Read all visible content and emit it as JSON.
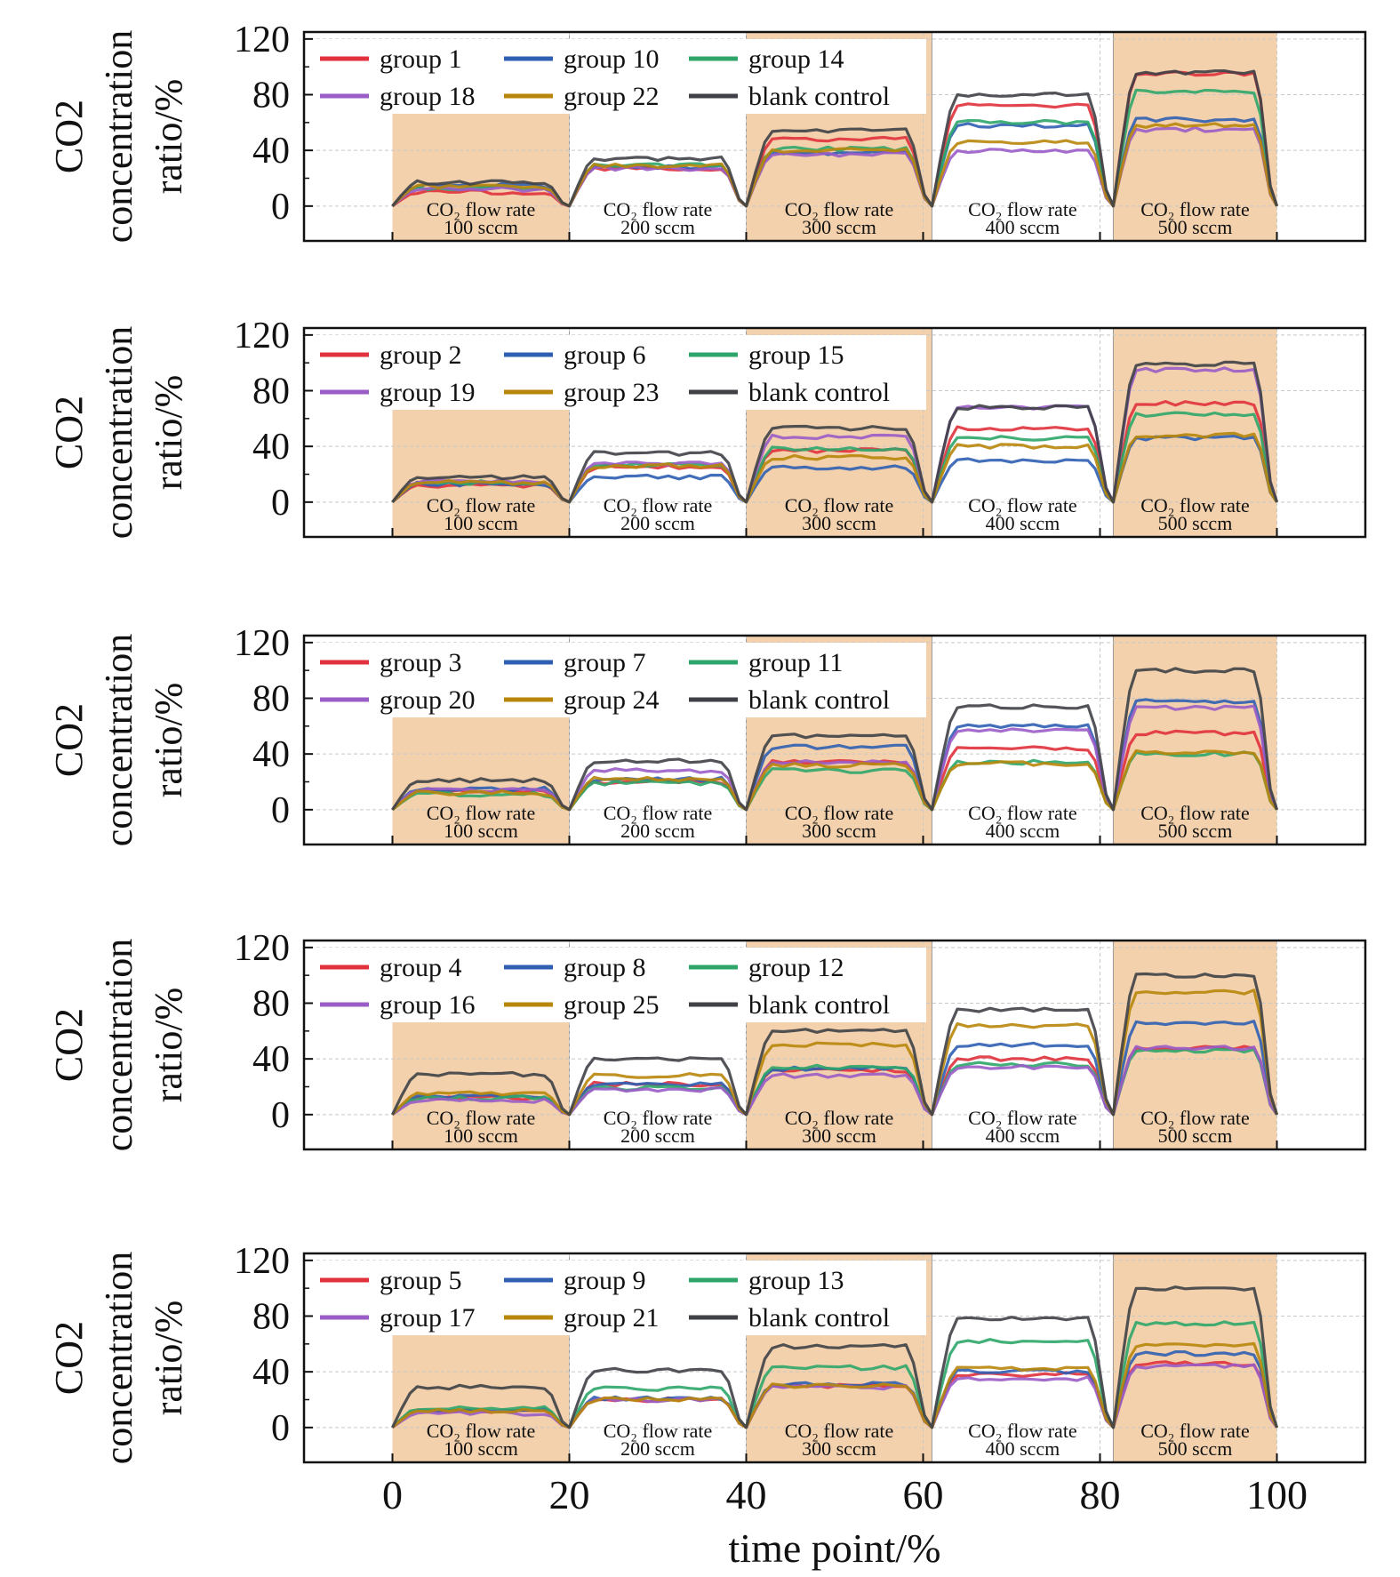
{
  "colors": {
    "red": "#e0313c",
    "blue": "#2f5fb3",
    "green": "#2ea66a",
    "purple": "#9a5cc6",
    "gold": "#b8860b",
    "dark": "#3f4147",
    "band": "#f3d1ad",
    "grid": "#c8c8c8"
  },
  "chart_data": [
    {
      "type": "line",
      "ylabel": [
        "CO2",
        "concentration",
        "ratio/%"
      ],
      "xlim": [
        -10,
        110
      ],
      "ylim": [
        -25,
        125
      ],
      "yticks": [
        0,
        40,
        80,
        120
      ],
      "grid": true,
      "legend_position": "top-left",
      "bands": [
        {
          "x0": 0,
          "x1": 20,
          "line1": "CO₂ flow rate",
          "line2": "100 sccm"
        },
        {
          "x0": 20,
          "x1": 40,
          "line1": "CO₂ flow rate",
          "line2": "200 sccm"
        },
        {
          "x0": 40,
          "x1": 61,
          "line1": "CO₂ flow rate",
          "line2": "300 sccm"
        },
        {
          "x0": 61,
          "x1": 81.5,
          "line1": "CO₂ flow rate",
          "line2": "400 sccm"
        },
        {
          "x0": 81.5,
          "x1": 100,
          "line1": "CO₂ flow rate",
          "line2": "500 sccm"
        }
      ],
      "series": [
        {
          "name": "group 1",
          "color": "red",
          "levels": [
            10,
            27,
            48,
            72,
            95
          ]
        },
        {
          "name": "group 10",
          "color": "blue",
          "levels": [
            15,
            28,
            38,
            58,
            62
          ]
        },
        {
          "name": "group 14",
          "color": "green",
          "levels": [
            13,
            29,
            41,
            60,
            82
          ]
        },
        {
          "name": "group 18",
          "color": "purple",
          "levels": [
            12,
            27,
            37,
            40,
            55
          ]
        },
        {
          "name": "group 22",
          "color": "gold",
          "levels": [
            14,
            29,
            40,
            46,
            58
          ]
        },
        {
          "name": "blank control",
          "color": "dark",
          "levels": [
            17,
            34,
            54,
            80,
            96
          ]
        }
      ]
    },
    {
      "type": "line",
      "ylabel": [
        "CO2",
        "concentration",
        "ratio/%"
      ],
      "xlim": [
        -10,
        110
      ],
      "ylim": [
        -25,
        125
      ],
      "yticks": [
        0,
        40,
        80,
        120
      ],
      "grid": true,
      "legend_position": "top-left",
      "bands": [
        {
          "x0": 0,
          "x1": 20,
          "line1": "CO₂ flow rate",
          "line2": "100 sccm"
        },
        {
          "x0": 20,
          "x1": 40,
          "line1": "CO₂ flow rate",
          "line2": "200 sccm"
        },
        {
          "x0": 40,
          "x1": 61,
          "line1": "CO₂ flow rate",
          "line2": "300 sccm"
        },
        {
          "x0": 61,
          "x1": 81.5,
          "line1": "CO₂ flow rate",
          "line2": "400 sccm"
        },
        {
          "x0": 81.5,
          "x1": 100,
          "line1": "CO₂ flow rate",
          "line2": "500 sccm"
        }
      ],
      "series": [
        {
          "name": "group 2",
          "color": "red",
          "levels": [
            12,
            25,
            37,
            53,
            71
          ]
        },
        {
          "name": "group 6",
          "color": "blue",
          "levels": [
            13,
            18,
            25,
            30,
            46
          ]
        },
        {
          "name": "group 15",
          "color": "green",
          "levels": [
            14,
            27,
            38,
            46,
            63
          ]
        },
        {
          "name": "group 19",
          "color": "purple",
          "levels": [
            15,
            28,
            47,
            68,
            95
          ]
        },
        {
          "name": "group 23",
          "color": "gold",
          "levels": [
            14,
            26,
            32,
            40,
            48
          ]
        },
        {
          "name": "blank control",
          "color": "dark",
          "levels": [
            18,
            35,
            53,
            68,
            99
          ]
        }
      ]
    },
    {
      "type": "line",
      "ylabel": [
        "CO2",
        "concentration",
        "ratio/%"
      ],
      "xlim": [
        -10,
        110
      ],
      "ylim": [
        -25,
        125
      ],
      "yticks": [
        0,
        40,
        80,
        120
      ],
      "grid": true,
      "legend_position": "top-left",
      "bands": [
        {
          "x0": 0,
          "x1": 20,
          "line1": "CO₂ flow rate",
          "line2": "100 sccm"
        },
        {
          "x0": 20,
          "x1": 40,
          "line1": "CO₂ flow rate",
          "line2": "200 sccm"
        },
        {
          "x0": 40,
          "x1": 61,
          "line1": "CO₂ flow rate",
          "line2": "300 sccm"
        },
        {
          "x0": 61,
          "x1": 81.5,
          "line1": "CO₂ flow rate",
          "line2": "400 sccm"
        },
        {
          "x0": 81.5,
          "x1": 100,
          "line1": "CO₂ flow rate",
          "line2": "500 sccm"
        }
      ],
      "series": [
        {
          "name": "group 3",
          "color": "red",
          "levels": [
            13,
            20,
            34,
            44,
            55
          ]
        },
        {
          "name": "group 7",
          "color": "blue",
          "levels": [
            15,
            22,
            45,
            60,
            78
          ]
        },
        {
          "name": "group 11",
          "color": "green",
          "levels": [
            11,
            19,
            28,
            34,
            40
          ]
        },
        {
          "name": "group 20",
          "color": "purple",
          "levels": [
            14,
            28,
            34,
            57,
            73
          ]
        },
        {
          "name": "group 24",
          "color": "gold",
          "levels": [
            12,
            22,
            32,
            33,
            41
          ]
        },
        {
          "name": "blank control",
          "color": "dark",
          "levels": [
            21,
            35,
            53,
            74,
            100
          ]
        }
      ]
    },
    {
      "type": "line",
      "ylabel": [
        "CO2",
        "concentration",
        "ratio/%"
      ],
      "xlim": [
        -10,
        110
      ],
      "ylim": [
        -25,
        125
      ],
      "yticks": [
        0,
        40,
        80,
        120
      ],
      "grid": true,
      "legend_position": "top-left",
      "bands": [
        {
          "x0": 0,
          "x1": 20,
          "line1": "CO₂ flow rate",
          "line2": "100 sccm"
        },
        {
          "x0": 20,
          "x1": 40,
          "line1": "CO₂ flow rate",
          "line2": "200 sccm"
        },
        {
          "x0": 40,
          "x1": 61,
          "line1": "CO₂ flow rate",
          "line2": "300 sccm"
        },
        {
          "x0": 61,
          "x1": 81.5,
          "line1": "CO₂ flow rate",
          "line2": "400 sccm"
        },
        {
          "x0": 81.5,
          "x1": 100,
          "line1": "CO₂ flow rate",
          "line2": "500 sccm"
        }
      ],
      "series": [
        {
          "name": "group 4",
          "color": "red",
          "levels": [
            12,
            22,
            32,
            40,
            48
          ]
        },
        {
          "name": "group 8",
          "color": "blue",
          "levels": [
            13,
            22,
            33,
            50,
            66
          ]
        },
        {
          "name": "group 12",
          "color": "green",
          "levels": [
            12,
            19,
            34,
            36,
            46
          ]
        },
        {
          "name": "group 16",
          "color": "purple",
          "levels": [
            10,
            18,
            28,
            34,
            48
          ]
        },
        {
          "name": "group 25",
          "color": "gold",
          "levels": [
            15,
            28,
            50,
            64,
            88
          ]
        },
        {
          "name": "blank control",
          "color": "dark",
          "levels": [
            29,
            40,
            60,
            75,
            100
          ]
        }
      ]
    },
    {
      "type": "line",
      "ylabel": [
        "CO2",
        "concentration",
        "ratio/%"
      ],
      "xlabel": "time point/%",
      "xticks": [
        0,
        20,
        40,
        60,
        80,
        100
      ],
      "xlim": [
        -10,
        110
      ],
      "ylim": [
        -25,
        125
      ],
      "yticks": [
        0,
        40,
        80,
        120
      ],
      "grid": true,
      "legend_position": "top-left",
      "bands": [
        {
          "x0": 0,
          "x1": 20,
          "line1": "CO₂ flow rate",
          "line2": "100 sccm"
        },
        {
          "x0": 20,
          "x1": 40,
          "line1": "CO₂ flow rate",
          "line2": "200 sccm"
        },
        {
          "x0": 40,
          "x1": 61,
          "line1": "CO₂ flow rate",
          "line2": "300 sccm"
        },
        {
          "x0": 61,
          "x1": 81.5,
          "line1": "CO₂ flow rate",
          "line2": "400 sccm"
        },
        {
          "x0": 81.5,
          "x1": 100,
          "line1": "CO₂ flow rate",
          "line2": "500 sccm"
        }
      ],
      "series": [
        {
          "name": "group 5",
          "color": "red",
          "levels": [
            12,
            20,
            30,
            38,
            46
          ]
        },
        {
          "name": "group 9",
          "color": "blue",
          "levels": [
            13,
            21,
            31,
            40,
            53
          ]
        },
        {
          "name": "group 13",
          "color": "green",
          "levels": [
            14,
            28,
            43,
            62,
            75
          ]
        },
        {
          "name": "group 17",
          "color": "purple",
          "levels": [
            10,
            20,
            29,
            35,
            44
          ]
        },
        {
          "name": "group 21",
          "color": "gold",
          "levels": [
            12,
            20,
            30,
            42,
            59
          ]
        },
        {
          "name": "blank control",
          "color": "dark",
          "levels": [
            29,
            41,
            58,
            78,
            100
          ]
        }
      ]
    }
  ]
}
